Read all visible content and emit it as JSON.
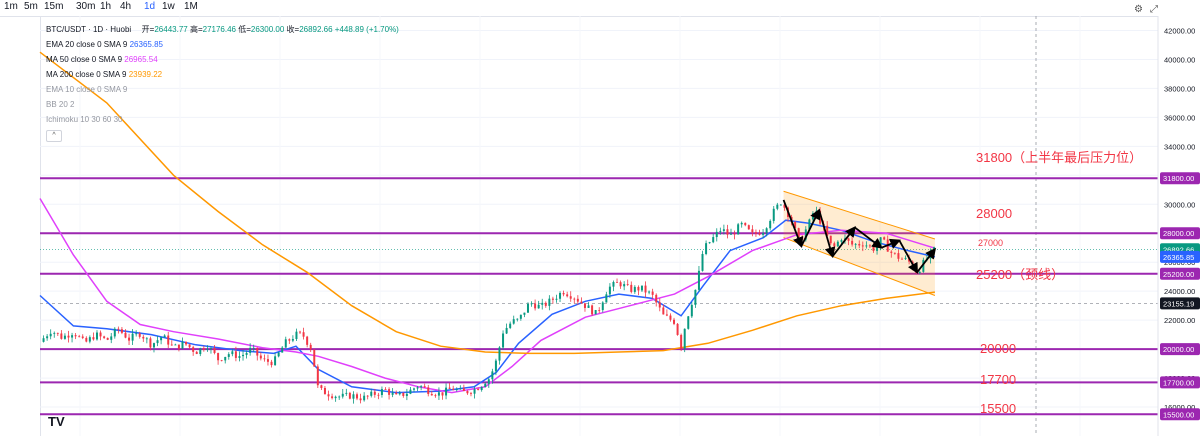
{
  "toolbar": {
    "timeframes": [
      "1m",
      "5m",
      "15m",
      "30m",
      "1h",
      "4h",
      "1d",
      "1w",
      "1M"
    ],
    "active": "1d"
  },
  "legend": {
    "symbol": "BTC/USDT · 1D · Huobi",
    "open_label": "开=",
    "open": "26443.77",
    "high_label": "高=",
    "high": "27176.46",
    "low_label": "低=",
    "low": "26300.00",
    "close_label": "收=",
    "close": "26892.66",
    "change": "+448.89 (+1.70%)",
    "indicators": [
      {
        "label": "EMA 20 close 0 SMA 9",
        "value": "26365.85",
        "color": "#2962ff"
      },
      {
        "label": "MA 50 close 0 SMA 9",
        "value": "26965.54",
        "color": "#e040fb"
      },
      {
        "label": "MA 200 close 0 SMA 9",
        "value": "23939.22",
        "color": "#ff9800"
      },
      {
        "label": "EMA 10 close 0 SMA 9",
        "value": "",
        "color": "#9598a1"
      },
      {
        "label": "BB 20 2",
        "value": "",
        "color": "#9598a1"
      },
      {
        "label": "Ichimoku 10 30 60 30",
        "value": "",
        "color": "#9598a1"
      }
    ],
    "collapse": "^"
  },
  "annotations": {
    "r31800": "31800（上半年最后压力位）",
    "r28000": "28000",
    "r27000": "27000",
    "r25200": "25200（颈线）",
    "r20000": "20000",
    "r17700": "17700",
    "r15500": "15500"
  },
  "logo": "TV",
  "chart_data": {
    "type": "candlestick",
    "title": "BTC/USDT · 1D · Huobi",
    "ylim": [
      14000,
      43000
    ],
    "y_ticks": [
      42000,
      40000,
      38000,
      36000,
      34000,
      32000,
      30000,
      28000,
      26000,
      24000,
      22000,
      20000,
      18000,
      16000
    ],
    "y_tick_labels": [
      "42000.00",
      "40000.00",
      "38000.00",
      "36000.00",
      "34000.00",
      "32000.00",
      "30000.00",
      "28000.00",
      "26000.00",
      "24000.00",
      "22000.00",
      "20000.00",
      "18000.00",
      "16000.00"
    ],
    "price_tags": [
      {
        "value": 31800,
        "label": "31800.00",
        "color": "#9c27b0"
      },
      {
        "value": 28000,
        "label": "28000.00",
        "color": "#9c27b0"
      },
      {
        "value": 26892.66,
        "label": "26892.66",
        "color": "#089981"
      },
      {
        "value": 26365.85,
        "label": "26365.85",
        "color": "#2962ff"
      },
      {
        "value": 25200,
        "label": "25200.00",
        "color": "#9c27b0"
      },
      {
        "value": 23155.19,
        "label": "23155.19",
        "color": "#131722"
      },
      {
        "value": 20000,
        "label": "20000.00",
        "color": "#9c27b0"
      },
      {
        "value": 17700,
        "label": "17700.00",
        "color": "#9c27b0"
      },
      {
        "value": 15500,
        "label": "15500.00",
        "color": "#9c27b0"
      }
    ],
    "horizontal_levels": [
      31800,
      28000,
      25200,
      20000,
      17700,
      15500
    ],
    "series": [
      {
        "name": "BTC/USDT",
        "points": [
          [
            0,
            20500
          ],
          [
            5,
            21300
          ],
          [
            10,
            20800
          ],
          [
            15,
            21200
          ],
          [
            20,
            20400
          ],
          [
            25,
            21000
          ],
          [
            30,
            20600
          ],
          [
            35,
            21400
          ],
          [
            40,
            20700
          ],
          [
            45,
            21100
          ],
          [
            50,
            20300
          ],
          [
            55,
            20900
          ],
          [
            60,
            20100
          ],
          [
            65,
            20400
          ],
          [
            70,
            19800
          ],
          [
            75,
            20300
          ],
          [
            80,
            19300
          ],
          [
            85,
            19700
          ],
          [
            90,
            19500
          ],
          [
            95,
            20000
          ],
          [
            100,
            19200
          ],
          [
            105,
            19100
          ],
          [
            110,
            20400
          ],
          [
            115,
            21000
          ],
          [
            118,
            21000
          ],
          [
            122,
            20000
          ],
          [
            125,
            17200
          ],
          [
            130,
            16900
          ],
          [
            135,
            16700
          ],
          [
            140,
            16800
          ],
          [
            145,
            16600
          ],
          [
            150,
            16900
          ],
          [
            155,
            17200
          ],
          [
            160,
            16700
          ],
          [
            165,
            17000
          ],
          [
            170,
            17500
          ],
          [
            175,
            17100
          ],
          [
            180,
            16900
          ],
          [
            185,
            17300
          ],
          [
            190,
            17000
          ],
          [
            195,
            17200
          ],
          [
            198,
            17500
          ],
          [
            200,
            17800
          ],
          [
            202,
            18000
          ],
          [
            205,
            19200
          ],
          [
            208,
            21200
          ],
          [
            212,
            21900
          ],
          [
            215,
            22000
          ],
          [
            220,
            23200
          ],
          [
            225,
            22900
          ],
          [
            230,
            23400
          ],
          [
            235,
            24000
          ],
          [
            240,
            23600
          ],
          [
            245,
            23000
          ],
          [
            250,
            22400
          ],
          [
            255,
            24200
          ],
          [
            260,
            24600
          ],
          [
            265,
            24100
          ],
          [
            270,
            24200
          ],
          [
            275,
            23700
          ],
          [
            280,
            22300
          ],
          [
            285,
            21900
          ],
          [
            288,
            20200
          ],
          [
            290,
            21800
          ],
          [
            295,
            24400
          ],
          [
            298,
            26900
          ],
          [
            302,
            27600
          ],
          [
            306,
            28300
          ],
          [
            310,
            27800
          ],
          [
            315,
            28600
          ],
          [
            320,
            27900
          ],
          [
            325,
            28200
          ],
          [
            330,
            29600
          ],
          [
            333,
            30200
          ],
          [
            337,
            29100
          ],
          [
            341,
            27400
          ],
          [
            345,
            28500
          ],
          [
            348,
            29700
          ],
          [
            352,
            28300
          ],
          [
            356,
            26900
          ],
          [
            360,
            27700
          ],
          [
            365,
            27200
          ],
          [
            370,
            27300
          ],
          [
            375,
            26900
          ],
          [
            378,
            27600
          ],
          [
            382,
            26700
          ],
          [
            386,
            26300
          ],
          [
            390,
            26100
          ],
          [
            394,
            25300
          ],
          [
            398,
            26200
          ],
          [
            402,
            26892.66
          ]
        ]
      },
      {
        "name": "EMA 20",
        "points": [
          [
            0,
            23700
          ],
          [
            15,
            21600
          ],
          [
            30,
            21400
          ],
          [
            50,
            21000
          ],
          [
            70,
            20300
          ],
          [
            90,
            19900
          ],
          [
            105,
            19700
          ],
          [
            115,
            20200
          ],
          [
            125,
            18600
          ],
          [
            140,
            17400
          ],
          [
            160,
            17000
          ],
          [
            180,
            17100
          ],
          [
            195,
            17400
          ],
          [
            205,
            18400
          ],
          [
            215,
            20400
          ],
          [
            230,
            22400
          ],
          [
            245,
            23300
          ],
          [
            260,
            23800
          ],
          [
            275,
            23500
          ],
          [
            288,
            22300
          ],
          [
            298,
            24400
          ],
          [
            310,
            26800
          ],
          [
            325,
            27700
          ],
          [
            335,
            28900
          ],
          [
            345,
            28700
          ],
          [
            360,
            28200
          ],
          [
            375,
            27400
          ],
          [
            390,
            26800
          ],
          [
            402,
            26365.85
          ]
        ]
      },
      {
        "name": "MA 50",
        "points": [
          [
            0,
            30400
          ],
          [
            15,
            26500
          ],
          [
            30,
            23300
          ],
          [
            45,
            21700
          ],
          [
            60,
            21200
          ],
          [
            80,
            20700
          ],
          [
            100,
            20100
          ],
          [
            115,
            19800
          ],
          [
            125,
            19500
          ],
          [
            140,
            18800
          ],
          [
            155,
            18000
          ],
          [
            170,
            17400
          ],
          [
            185,
            17000
          ],
          [
            200,
            17400
          ],
          [
            212,
            18800
          ],
          [
            225,
            20600
          ],
          [
            245,
            22200
          ],
          [
            265,
            23000
          ],
          [
            285,
            23800
          ],
          [
            300,
            25000
          ],
          [
            320,
            26800
          ],
          [
            340,
            27900
          ],
          [
            360,
            28200
          ],
          [
            380,
            28000
          ],
          [
            402,
            26965.54
          ]
        ]
      },
      {
        "name": "MA 200",
        "points": [
          [
            0,
            40500
          ],
          [
            30,
            37000
          ],
          [
            60,
            32000
          ],
          [
            80,
            29500
          ],
          [
            100,
            27200
          ],
          [
            120,
            25300
          ],
          [
            140,
            23000
          ],
          [
            160,
            21200
          ],
          [
            180,
            20200
          ],
          [
            200,
            19800
          ],
          [
            220,
            19700
          ],
          [
            240,
            19700
          ],
          [
            260,
            19800
          ],
          [
            280,
            19900
          ],
          [
            300,
            20400
          ],
          [
            320,
            21300
          ],
          [
            340,
            22300
          ],
          [
            360,
            23000
          ],
          [
            380,
            23500
          ],
          [
            402,
            23939.22
          ]
        ]
      }
    ],
    "channel": {
      "upper": [
        [
          334,
          30900
        ],
        [
          402,
          27600
        ]
      ],
      "lower": [
        [
          334,
          27700
        ],
        [
          402,
          23700
        ]
      ]
    },
    "zigzag": [
      [
        334,
        30300
      ],
      [
        342,
        27100
      ],
      [
        350,
        29600
      ],
      [
        356,
        26400
      ],
      [
        366,
        28400
      ],
      [
        378,
        27000
      ],
      [
        386,
        27500
      ],
      [
        394,
        25300
      ],
      [
        402,
        26900
      ]
    ]
  }
}
